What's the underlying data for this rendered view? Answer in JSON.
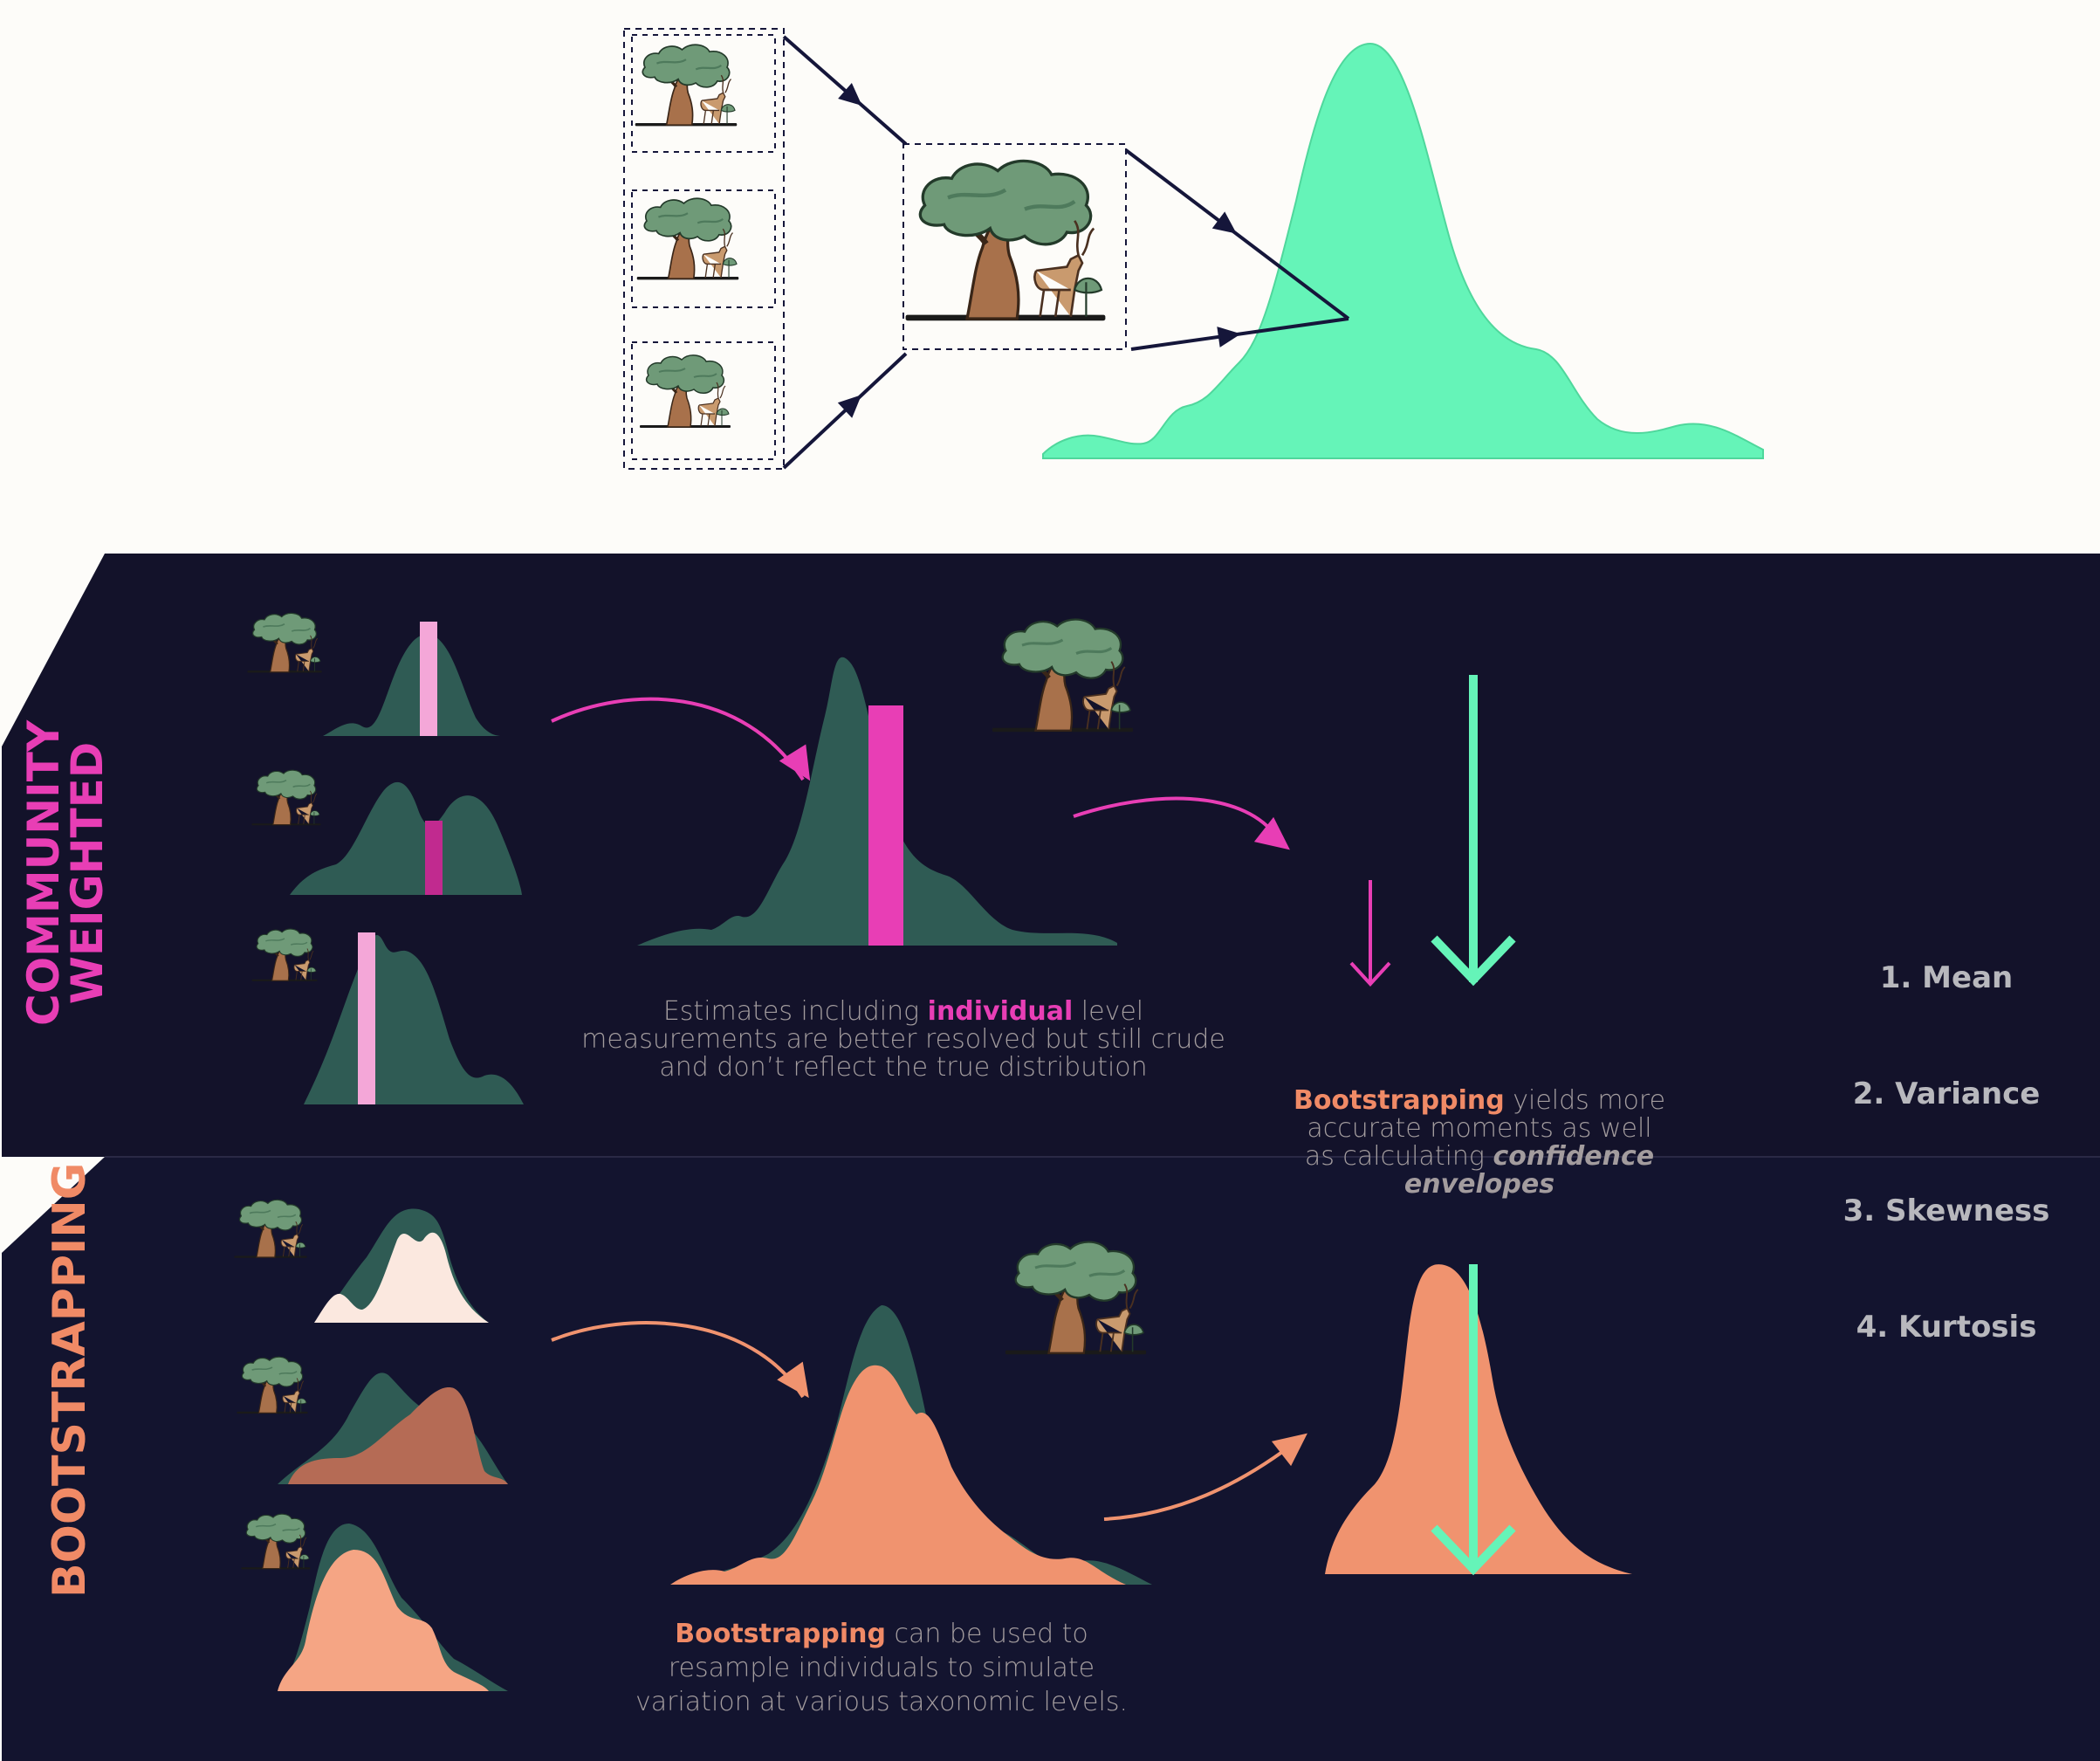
{
  "colors": {
    "panel_dark": "#13122a",
    "panel_divider": "#2a2945",
    "mint": "#65f4b8",
    "dark_teal": "#2f5b54",
    "pink": "#e83eb5",
    "light_pink": "#f4a7d8",
    "salmon": "#f0936f",
    "cream": "#fbe8df",
    "brown": "#b56b55",
    "navy_arrow": "#15163a",
    "text_grey": "#a39c9e"
  },
  "icons": [
    "tree-kudu-scene-icon"
  ],
  "sections": {
    "community": {
      "label_line1": "COMMUNITY",
      "label_line2": "WEIGHTED"
    },
    "bootstrapping": {
      "label": "BOOTSTRAPPING"
    }
  },
  "captions": {
    "community": {
      "pre": "Estimates including ",
      "highlight": "individual",
      "post": " level measurements are better resolved but still crude and don’t reflect the true distribution"
    },
    "boot_moments": {
      "highlight": "Bootstrapping",
      "mid": " yields more accurate moments as well as calculating ",
      "emph": "confidence envelopes"
    },
    "bootstrapping": {
      "highlight": "Bootstrapping",
      "post": " can be used to resample individuals to simulate variation at various taxonomic levels."
    }
  },
  "moments": [
    "1. Mean",
    "2. Variance",
    "3. Skewness",
    "4. Kurtosis"
  ]
}
